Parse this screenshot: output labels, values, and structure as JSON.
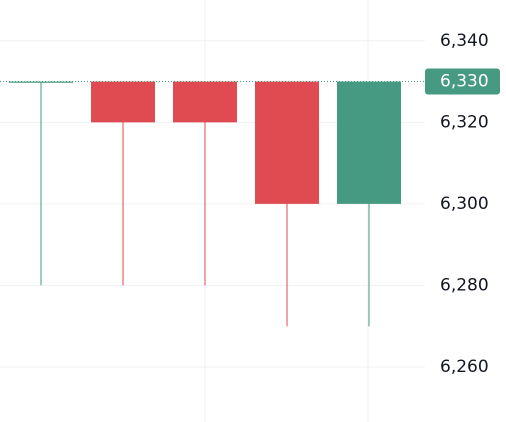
{
  "chart_data": {
    "type": "candlestick",
    "open": [
      6330,
      6330,
      6330,
      6330,
      6300
    ],
    "high": [
      6330,
      6330,
      6330,
      6330,
      6330
    ],
    "low": [
      6280,
      6280,
      6280,
      6270,
      6270
    ],
    "close": [
      6330,
      6320,
      6320,
      6300,
      6330
    ],
    "up_color": "#479a82",
    "down_color": "#e04a51",
    "ylim": [
      6247,
      6350
    ],
    "yticks": [
      {
        "value": 6340,
        "label": "6,340"
      },
      {
        "value": 6320,
        "label": "6,320"
      },
      {
        "value": 6300,
        "label": "6,300"
      },
      {
        "value": 6280,
        "label": "6,280"
      },
      {
        "value": 6260,
        "label": "6,260"
      }
    ],
    "grid": true,
    "last_price": {
      "value": 6330,
      "label": "6,330"
    }
  }
}
